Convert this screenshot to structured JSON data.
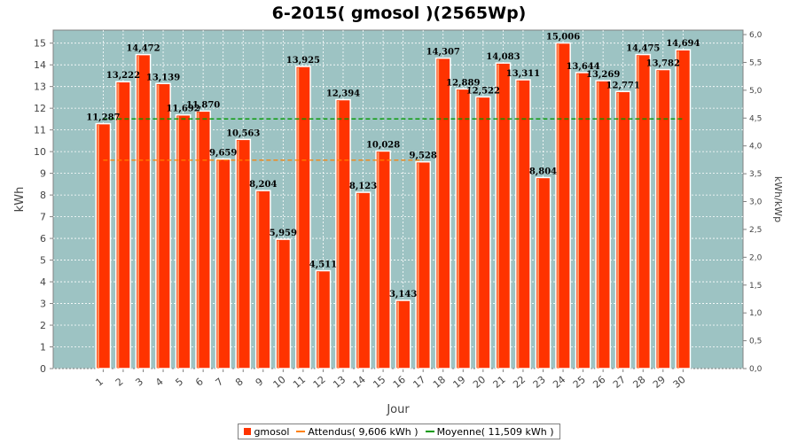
{
  "chart_data": {
    "type": "bar",
    "title": "6-2015( gmosol )(2565Wp)",
    "xlabel": "Jour",
    "ylabel": "kWh",
    "y2label": "kWh/kWp",
    "ylim": [
      0,
      15.6
    ],
    "y2lim": [
      0,
      6.08
    ],
    "yticks": [
      "0",
      "1",
      "2",
      "3",
      "4",
      "5",
      "6",
      "7",
      "8",
      "9",
      "10",
      "11",
      "12",
      "13",
      "14",
      "15"
    ],
    "y2ticks": [
      "0,0",
      "0,5",
      "1,0",
      "1,5",
      "2,0",
      "2,5",
      "3,0",
      "3,5",
      "4,0",
      "4,5",
      "5,0",
      "5,5",
      "6,0"
    ],
    "categories": [
      "1",
      "2",
      "3",
      "4",
      "5",
      "6",
      "7",
      "8",
      "9",
      "10",
      "11",
      "12",
      "13",
      "14",
      "15",
      "16",
      "17",
      "18",
      "19",
      "20",
      "21",
      "22",
      "23",
      "24",
      "25",
      "26",
      "27",
      "28",
      "29",
      "30"
    ],
    "series": [
      {
        "name": "gmosol",
        "color": "#ff3300",
        "values": [
          11.287,
          13.222,
          14.472,
          13.139,
          11.692,
          11.87,
          9.659,
          10.563,
          8.204,
          5.959,
          13.925,
          4.511,
          12.394,
          8.123,
          10.028,
          3.143,
          9.528,
          14.307,
          12.889,
          12.522,
          14.083,
          13.311,
          8.804,
          15.006,
          13.644,
          13.269,
          12.771,
          14.475,
          13.782,
          14.694
        ],
        "labels": [
          "11,287",
          "13,222",
          "14,472",
          "13,139",
          "11,692",
          "11,870",
          "9,659",
          "10,563",
          "8,204",
          "5,959",
          "13,925",
          "4,511",
          "12,394",
          "8,123",
          "10,028",
          "3,143",
          "9,528",
          "14,307",
          "12,889",
          "12,522",
          "14,083",
          "13,311",
          "8,804",
          "15,006",
          "13,644",
          "13,269",
          "12,771",
          "14,475",
          "13,782",
          "14,694"
        ]
      }
    ],
    "reference_lines": [
      {
        "name": "Attendus",
        "value": 9.606,
        "color": "#ff8000",
        "x_from": "1",
        "x_to": "17"
      },
      {
        "name": "Moyenne",
        "value": 11.509,
        "color": "#009900",
        "x_from": "1",
        "x_to": "30"
      }
    ],
    "legend": {
      "position": "bottom",
      "items": [
        {
          "label": "gmosol",
          "kind": "box",
          "color": "#ff3300"
        },
        {
          "label": "Attendus( 9,606 kWh )",
          "kind": "line",
          "color": "#ff8000"
        },
        {
          "label": "Moyenne( 11,509 kWh )",
          "kind": "line",
          "color": "#009900"
        }
      ]
    },
    "plot_background": "#9dc3c3",
    "grid": true
  }
}
